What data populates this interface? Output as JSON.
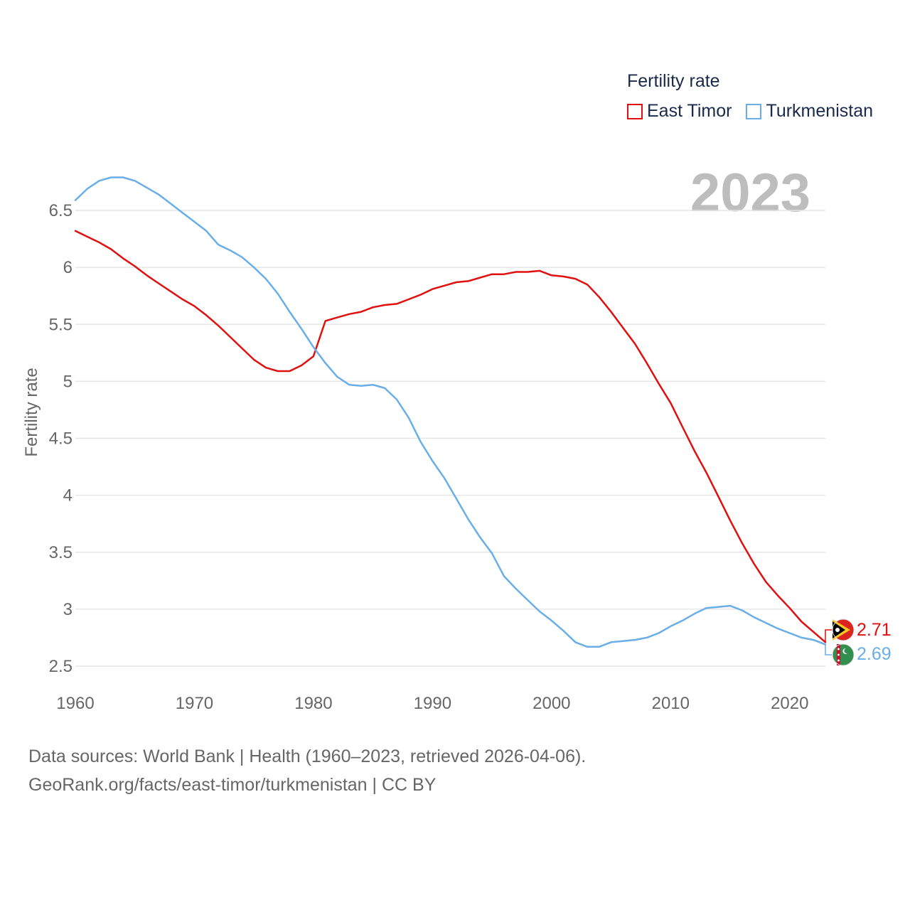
{
  "legend": {
    "title": "Fertility rate",
    "items": [
      {
        "name": "East Timor",
        "color": "#e01010"
      },
      {
        "name": "Turkmenistan",
        "color": "#6aaee8"
      }
    ]
  },
  "year_label": "2023",
  "source": {
    "line1": "Data sources: World Bank | Health (1960–2023, retrieved 2026-04-06).",
    "line2": "GeoRank.org/facts/east-timor/turkmenistan | CC BY"
  },
  "chart_data": {
    "type": "line",
    "title": "",
    "xlabel": "",
    "ylabel": "Fertility rate",
    "xlim": [
      1960,
      2023
    ],
    "ylim": [
      2.45,
      6.85
    ],
    "x_ticks": [
      1960,
      1970,
      1980,
      1990,
      2000,
      2010,
      2020
    ],
    "y_ticks": [
      2.5,
      3,
      3.5,
      4,
      4.5,
      5,
      5.5,
      6,
      6.5
    ],
    "y_tick_labels": [
      "2.5",
      "3",
      "3.5",
      "4",
      "4.5",
      "5",
      "5.5",
      "6",
      "6.5"
    ],
    "x": [
      1960,
      1961,
      1962,
      1963,
      1964,
      1965,
      1966,
      1967,
      1968,
      1969,
      1970,
      1971,
      1972,
      1973,
      1974,
      1975,
      1976,
      1977,
      1978,
      1979,
      1980,
      1981,
      1982,
      1983,
      1984,
      1985,
      1986,
      1987,
      1988,
      1989,
      1990,
      1991,
      1992,
      1993,
      1994,
      1995,
      1996,
      1997,
      1998,
      1999,
      2000,
      2001,
      2002,
      2003,
      2004,
      2005,
      2006,
      2007,
      2008,
      2009,
      2010,
      2011,
      2012,
      2013,
      2014,
      2015,
      2016,
      2017,
      2018,
      2019,
      2020,
      2021,
      2022,
      2023
    ],
    "series": [
      {
        "name": "East Timor",
        "color": "#e01010",
        "end_label": "2.71",
        "values": [
          6.32,
          6.27,
          6.22,
          6.16,
          6.08,
          6.01,
          5.93,
          5.86,
          5.79,
          5.72,
          5.66,
          5.58,
          5.49,
          5.39,
          5.29,
          5.19,
          5.12,
          5.09,
          5.09,
          5.14,
          5.22,
          5.53,
          5.56,
          5.59,
          5.61,
          5.65,
          5.67,
          5.68,
          5.72,
          5.76,
          5.81,
          5.84,
          5.87,
          5.88,
          5.91,
          5.94,
          5.94,
          5.96,
          5.96,
          5.97,
          5.93,
          5.92,
          5.9,
          5.85,
          5.74,
          5.61,
          5.47,
          5.33,
          5.16,
          4.98,
          4.81,
          4.6,
          4.39,
          4.2,
          3.99,
          3.78,
          3.58,
          3.4,
          3.24,
          3.12,
          3.01,
          2.89,
          2.8,
          2.71
        ]
      },
      {
        "name": "Turkmenistan",
        "color": "#6aaee8",
        "end_label": "2.69",
        "values": [
          6.59,
          6.69,
          6.76,
          6.79,
          6.79,
          6.76,
          6.7,
          6.64,
          6.56,
          6.48,
          6.4,
          6.32,
          6.2,
          6.15,
          6.09,
          6.0,
          5.9,
          5.77,
          5.61,
          5.46,
          5.3,
          5.16,
          5.04,
          4.97,
          4.96,
          4.97,
          4.94,
          4.84,
          4.68,
          4.47,
          4.3,
          4.15,
          3.97,
          3.79,
          3.63,
          3.49,
          3.29,
          3.18,
          3.08,
          2.98,
          2.9,
          2.81,
          2.71,
          2.67,
          2.67,
          2.71,
          2.72,
          2.73,
          2.75,
          2.79,
          2.85,
          2.9,
          2.96,
          3.01,
          3.02,
          3.03,
          2.99,
          2.93,
          2.88,
          2.83,
          2.79,
          2.75,
          2.73,
          2.69
        ]
      }
    ]
  }
}
